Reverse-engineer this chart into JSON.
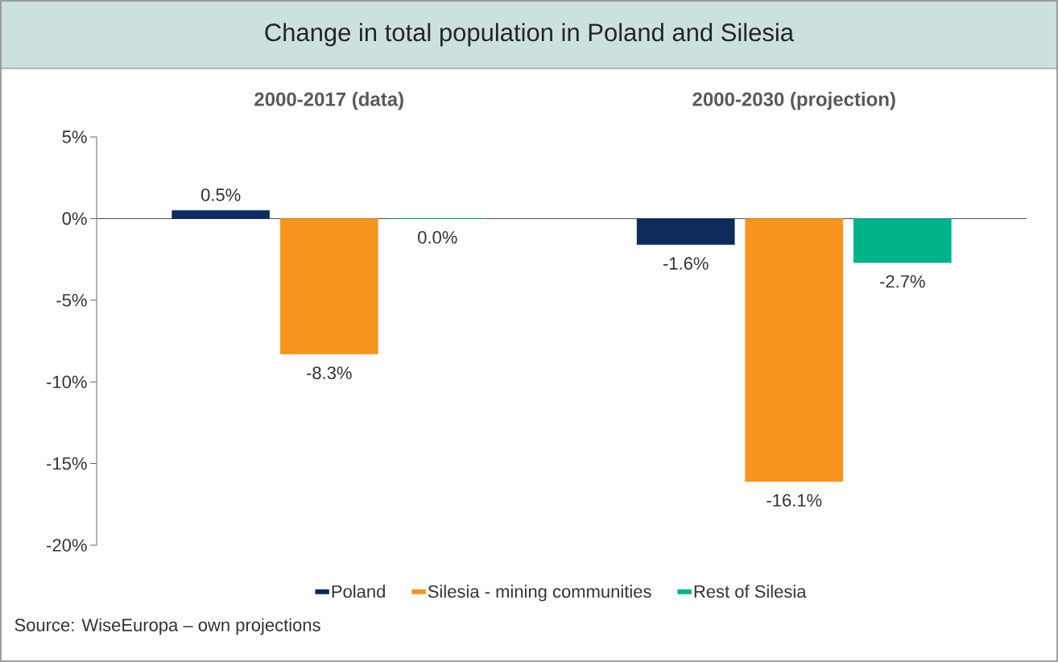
{
  "chart_data": {
    "type": "bar",
    "title": "Change in total population in Poland and Silesia",
    "categories": [
      "2000-2017 (data)",
      "2000-2030 (projection)"
    ],
    "series": [
      {
        "name": "Poland",
        "color": "#0d2b5c",
        "values": [
          0.5,
          -1.6
        ],
        "value_labels": [
          "0.5%",
          "-1.6%"
        ]
      },
      {
        "name": "Silesia - mining communities",
        "color": "#f7941d",
        "values": [
          -8.3,
          -16.1
        ],
        "value_labels": [
          "-8.3%",
          "-16.1%"
        ]
      },
      {
        "name": "Rest of Silesia",
        "color": "#00b28a",
        "values": [
          0.0,
          -2.7
        ],
        "value_labels": [
          "0.0%",
          "-2.7%"
        ]
      }
    ],
    "ylim": [
      -20,
      5
    ],
    "yticks": [
      {
        "value": 5,
        "label": "5%"
      },
      {
        "value": 0,
        "label": "0%"
      },
      {
        "value": -5,
        "label": "-5%"
      },
      {
        "value": -10,
        "label": "-10%"
      },
      {
        "value": -15,
        "label": "-15%"
      },
      {
        "value": -20,
        "label": "-20%"
      }
    ],
    "legend": "bottom",
    "annotations": [
      "Source: WiseEuropa – own projections"
    ]
  }
}
